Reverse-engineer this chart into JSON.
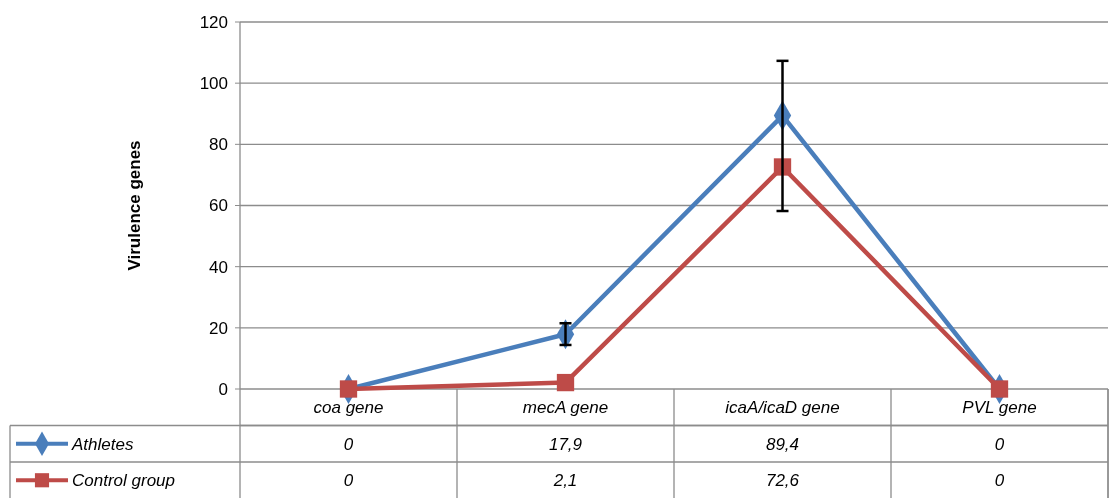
{
  "chart_data": {
    "type": "line",
    "ylabel": "Virulence genes",
    "categories": [
      "coa gene",
      "mecA gene",
      "icaA/icaD  gene",
      "PVL gene"
    ],
    "series": [
      {
        "name": "Athletes",
        "color": "#4a7ebb",
        "marker": "diamond",
        "values": [
          0,
          17.9,
          89.4,
          0
        ],
        "value_labels": [
          "0",
          "17,9",
          "89,4",
          "0"
        ],
        "errors": [
          null,
          [
            14.4,
            21.5
          ],
          [
            58.2,
            107.3
          ],
          null
        ]
      },
      {
        "name": "Control group",
        "color": "#be4b48",
        "marker": "square",
        "values": [
          0,
          2.1,
          72.6,
          0
        ],
        "value_labels": [
          "0",
          "2,1",
          "72,6",
          "0"
        ]
      }
    ],
    "ylim": [
      0,
      120
    ],
    "yticks": [
      0,
      20,
      40,
      60,
      80,
      100,
      120
    ],
    "grid": "y",
    "legend": "bottom"
  }
}
